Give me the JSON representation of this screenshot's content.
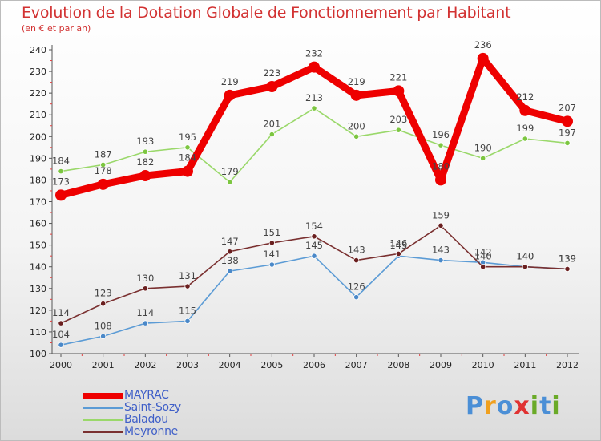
{
  "title": "Evolution de la Dotation Globale de Fonctionnement par Habitant",
  "subtitle": "(en € et par an)",
  "brand": {
    "text": "Proxiti",
    "letter_colors": [
      "#4b8fd6",
      "#f0a01e",
      "#4b8fd6",
      "#e03232",
      "#6aaa28",
      "#4b8fd6",
      "#6aaa28"
    ]
  },
  "chart_data": {
    "type": "line",
    "title": "Evolution de la Dotation Globale de Fonctionnement par Habitant",
    "subtitle": "(en € et par an)",
    "x": [
      2000,
      2001,
      2002,
      2003,
      2004,
      2005,
      2006,
      2007,
      2008,
      2009,
      2010,
      2011,
      2012
    ],
    "ylim": [
      100,
      240
    ],
    "yticks": [
      100,
      110,
      120,
      130,
      140,
      150,
      160,
      170,
      180,
      190,
      200,
      210,
      220,
      230,
      240
    ],
    "grid": false,
    "legend_position": "bottom-left",
    "series": [
      {
        "name": "Saint-Sozy",
        "color": "#5b9bd5",
        "marker": "#4a88c8",
        "values": [
          104,
          108,
          114,
          115,
          138,
          141,
          145,
          126,
          145,
          143,
          142,
          140,
          139
        ],
        "labels": [
          "104",
          "108",
          "114",
          "115",
          "138",
          "141",
          "145",
          "126",
          "145",
          "143",
          "142",
          "140",
          "139"
        ]
      },
      {
        "name": "Meyronne",
        "color": "#7a3030",
        "marker": "#6a1f1f",
        "values": [
          114,
          123,
          130,
          131,
          147,
          151,
          154,
          143,
          146,
          159,
          140,
          140,
          139
        ],
        "labels": [
          "114",
          "123",
          "130",
          "131",
          "147",
          "151",
          "154",
          "143",
          "146",
          "159",
          "140",
          "140",
          "139"
        ]
      },
      {
        "name": "Baladou",
        "color": "#9ad86a",
        "marker": "#7cc640",
        "values": [
          184,
          187,
          193,
          195,
          179,
          201,
          213,
          200,
          203,
          196,
          190,
          199,
          197
        ],
        "labels": [
          "184",
          "187",
          "193",
          "195",
          "179",
          "201",
          "213",
          "200",
          "203",
          "196",
          "190",
          "199",
          "197"
        ]
      },
      {
        "name": "MAYRAC",
        "color": "#ee0000",
        "marker": "#ee0000",
        "values": [
          173,
          178,
          182,
          184,
          219,
          223,
          232,
          219,
          221,
          180,
          236,
          212,
          207
        ],
        "labels": [
          "173",
          "178",
          "182",
          "184",
          "219",
          "223",
          "232",
          "219",
          "221",
          "180",
          "236",
          "212",
          "207"
        ]
      }
    ],
    "legend": [
      "MAYRAC",
      "Saint-Sozy",
      "Baladou",
      "Meyronne"
    ]
  }
}
